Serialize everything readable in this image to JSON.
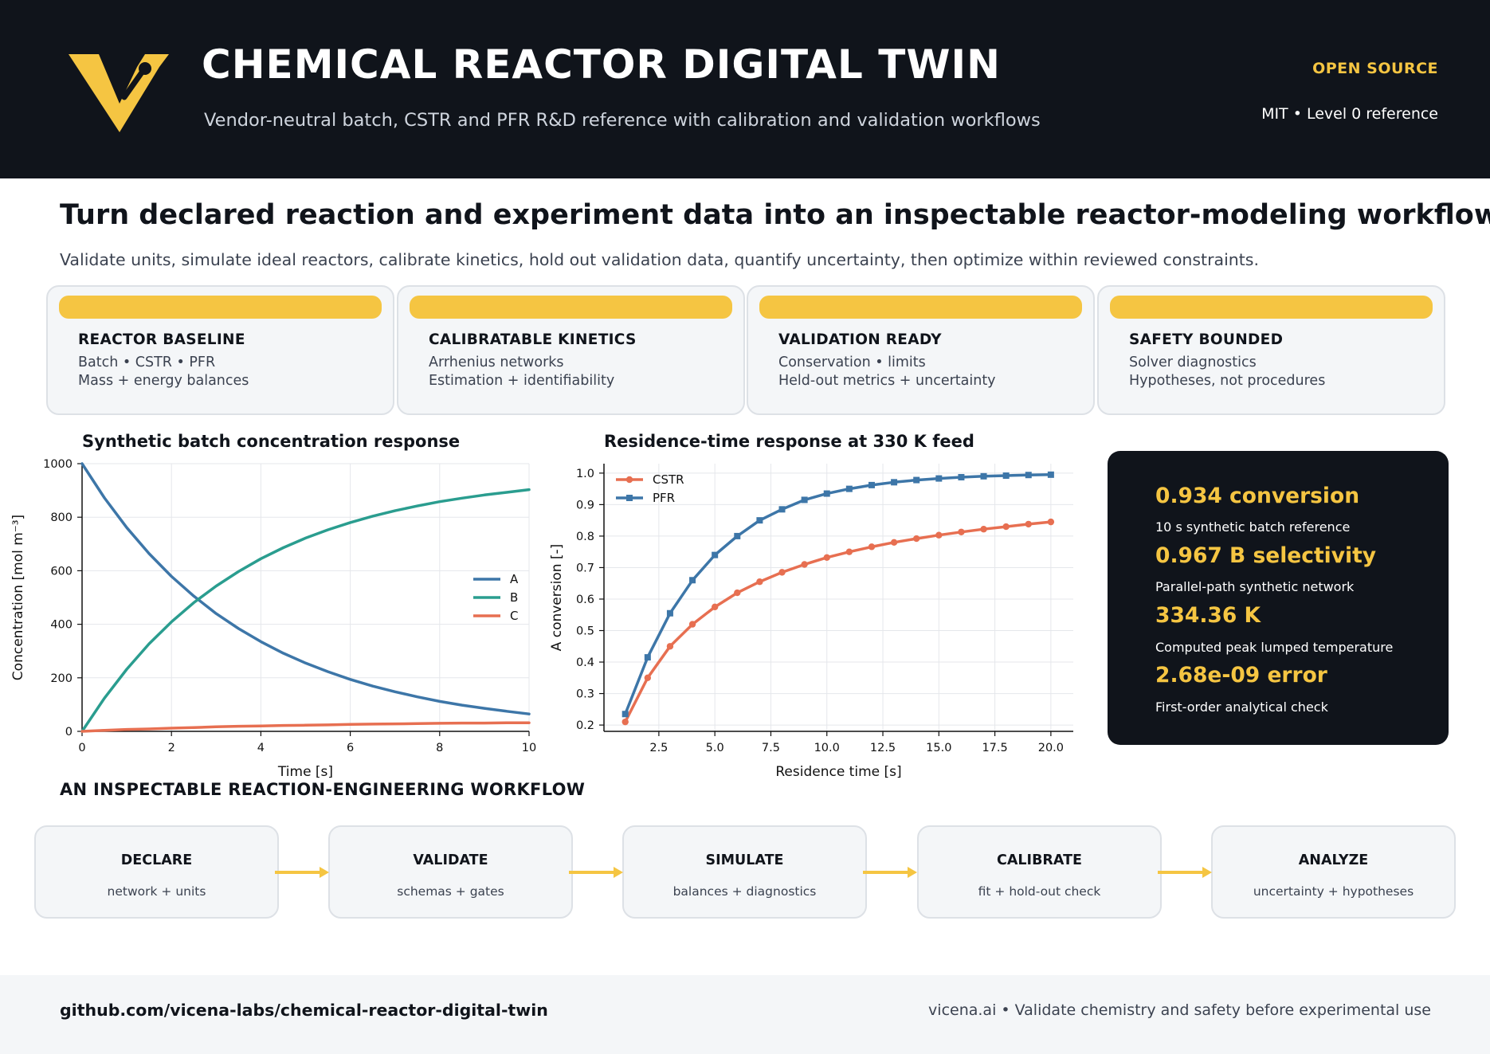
{
  "header": {
    "title": "CHEMICAL REACTOR DIGITAL TWIN",
    "subtitle": "Vendor-neutral batch, CSTR and PFR R&D reference with calibration and validation workflows",
    "badge": "OPEN SOURCE",
    "meta": "MIT  •  Level 0 reference",
    "logo_icon": "v-logo-icon",
    "accent_color": "#f5c542",
    "background_color": "#10141b"
  },
  "headline": "Turn declared reaction and experiment data into an inspectable reactor-modeling workflow.",
  "subheadline": "Validate units, simulate ideal reactors, calibrate kinetics, hold out validation data, quantify uncertainty, then optimize within reviewed constraints.",
  "cards": [
    {
      "title": "REACTOR BASELINE",
      "line1": "Batch • CSTR • PFR",
      "line2": "Mass + energy balances"
    },
    {
      "title": "CALIBRATABLE KINETICS",
      "line1": "Arrhenius networks",
      "line2": "Estimation + identifiability"
    },
    {
      "title": "VALIDATION READY",
      "line1": "Conservation • limits",
      "line2": "Held-out metrics + uncertainty"
    },
    {
      "title": "SAFETY BOUNDED",
      "line1": "Solver diagnostics",
      "line2": "Hypotheses, not procedures"
    }
  ],
  "chart_data": [
    {
      "type": "line",
      "title": "Synthetic batch concentration response",
      "xlabel": "Time [s]",
      "ylabel": "Concentration [mol m⁻³]",
      "xlim": [
        0,
        10
      ],
      "ylim": [
        0,
        1000
      ],
      "xticks": [
        0,
        2,
        4,
        6,
        8,
        10
      ],
      "yticks": [
        0,
        200,
        400,
        600,
        800,
        1000
      ],
      "grid": true,
      "legend": "center-right",
      "x": [
        0,
        0.5,
        1,
        1.5,
        2,
        2.5,
        3,
        3.5,
        4,
        4.5,
        5,
        5.5,
        6,
        6.5,
        7,
        7.5,
        8,
        8.5,
        9,
        9.5,
        10
      ],
      "series": [
        {
          "name": "A",
          "color": "#3d76a8",
          "values": [
            1000,
            872,
            761,
            664,
            579,
            505,
            440,
            384,
            335,
            292,
            255,
            223,
            194,
            169,
            148,
            129,
            112,
            98,
            86,
            75,
            65
          ]
        },
        {
          "name": "B",
          "color": "#2a9d8f",
          "values": [
            0,
            124,
            232,
            327,
            409,
            481,
            543,
            597,
            645,
            686,
            722,
            753,
            780,
            804,
            824,
            842,
            858,
            871,
            883,
            893,
            903
          ]
        },
        {
          "name": "C",
          "color": "#e76f51",
          "values": [
            0,
            4,
            7,
            9,
            12,
            14,
            17,
            19,
            20,
            22,
            23,
            24,
            26,
            27,
            28,
            29,
            30,
            31,
            31,
            32,
            32
          ]
        }
      ]
    },
    {
      "type": "line",
      "title": "Residence-time response at 330 K feed",
      "xlabel": "Residence time [s]",
      "ylabel": "A conversion [-]",
      "xlim": [
        0.05,
        21
      ],
      "ylim": [
        0.18,
        1.03
      ],
      "xticks": [
        2.5,
        5.0,
        7.5,
        10.0,
        12.5,
        15.0,
        17.5,
        20.0
      ],
      "yticks": [
        0.2,
        0.3,
        0.4,
        0.5,
        0.6,
        0.7,
        0.8,
        0.9,
        1.0
      ],
      "grid": true,
      "legend": "top-left",
      "x": [
        1,
        2,
        3,
        4,
        5,
        6,
        7,
        8,
        9,
        10,
        11,
        12,
        13,
        14,
        15,
        16,
        17,
        18,
        19,
        20
      ],
      "series": [
        {
          "name": "CSTR",
          "color": "#e76f51",
          "marker": "circle",
          "values": [
            0.21,
            0.35,
            0.45,
            0.52,
            0.575,
            0.62,
            0.655,
            0.685,
            0.71,
            0.732,
            0.75,
            0.766,
            0.78,
            0.792,
            0.803,
            0.813,
            0.822,
            0.83,
            0.838,
            0.845
          ]
        },
        {
          "name": "PFR",
          "color": "#3d76a8",
          "marker": "square",
          "values": [
            0.235,
            0.415,
            0.555,
            0.66,
            0.74,
            0.8,
            0.85,
            0.885,
            0.915,
            0.935,
            0.95,
            0.962,
            0.971,
            0.978,
            0.983,
            0.987,
            0.99,
            0.992,
            0.994,
            0.995
          ]
        }
      ]
    }
  ],
  "kpis": [
    {
      "value": "0.934 conversion",
      "label": "10 s synthetic batch reference"
    },
    {
      "value": "0.967 B selectivity",
      "label": "Parallel-path synthetic network"
    },
    {
      "value": "334.36 K",
      "label": "Computed peak lumped temperature"
    },
    {
      "value": "2.68e-09 error",
      "label": "First-order analytical check"
    }
  ],
  "workflow": {
    "title": "AN INSPECTABLE REACTION-ENGINEERING WORKFLOW",
    "arrow_icon": "arrow-right-icon",
    "steps": [
      {
        "title": "DECLARE",
        "sub": "network + units"
      },
      {
        "title": "VALIDATE",
        "sub": "schemas + gates"
      },
      {
        "title": "SIMULATE",
        "sub": "balances + diagnostics"
      },
      {
        "title": "CALIBRATE",
        "sub": "fit + hold-out check"
      },
      {
        "title": "ANALYZE",
        "sub": "uncertainty + hypotheses"
      }
    ]
  },
  "footer": {
    "url": "github.com/vicena-labs/chemical-reactor-digital-twin",
    "note": "vicena.ai  •  Validate chemistry and safety before experimental use"
  }
}
